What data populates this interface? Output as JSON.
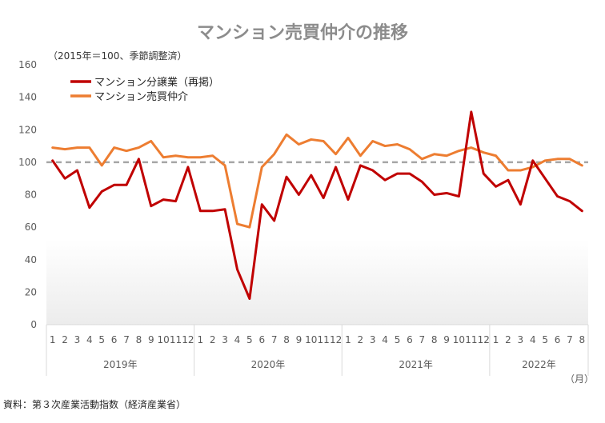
{
  "chart_data": {
    "type": "line",
    "title": "マンション売買仲介の推移",
    "subtitle": "（2015年＝100、季節調整済）",
    "source": "資料：第３次産業活動指数（経済産業省）",
    "xlabel": "（月）",
    "ylabel": "",
    "ylim": [
      0,
      160
    ],
    "yticks": [
      0,
      20,
      40,
      60,
      80,
      100,
      120,
      140,
      160
    ],
    "reference_line": 100,
    "grid": false,
    "legend_position": "top-left",
    "months": [
      "1",
      "2",
      "3",
      "4",
      "5",
      "6",
      "7",
      "8",
      "9",
      "10",
      "11",
      "12",
      "1",
      "2",
      "3",
      "4",
      "5",
      "6",
      "7",
      "8",
      "9",
      "10",
      "11",
      "12",
      "1",
      "2",
      "3",
      "4",
      "5",
      "6",
      "7",
      "8",
      "9",
      "10",
      "11",
      "12",
      "1",
      "2",
      "3",
      "4",
      "5",
      "6",
      "7",
      "8"
    ],
    "years": [
      {
        "label": "2019年",
        "count": 12
      },
      {
        "label": "2020年",
        "count": 12
      },
      {
        "label": "2021年",
        "count": 12
      },
      {
        "label": "2022年",
        "count": 8
      }
    ],
    "series": [
      {
        "name": "マンション分譲業（再掲）",
        "color": "#c00000",
        "values": [
          101,
          90,
          95,
          72,
          82,
          86,
          86,
          102,
          73,
          77,
          76,
          97,
          70,
          70,
          71,
          34,
          16,
          74,
          64,
          91,
          80,
          92,
          78,
          97,
          77,
          98,
          95,
          89,
          93,
          93,
          88,
          80,
          81,
          79,
          131,
          93,
          85,
          89,
          74,
          101,
          90,
          79,
          76,
          70
        ]
      },
      {
        "name": "マンション売買仲介",
        "color": "#ed7d31",
        "values": [
          109,
          108,
          109,
          109,
          98,
          109,
          107,
          109,
          113,
          103,
          104,
          103,
          103,
          104,
          98,
          62,
          60,
          97,
          105,
          117,
          111,
          114,
          113,
          105,
          115,
          104,
          113,
          110,
          111,
          108,
          102,
          105,
          104,
          107,
          109,
          106,
          104,
          95,
          95,
          97,
          101,
          102,
          102,
          98
        ]
      }
    ]
  }
}
